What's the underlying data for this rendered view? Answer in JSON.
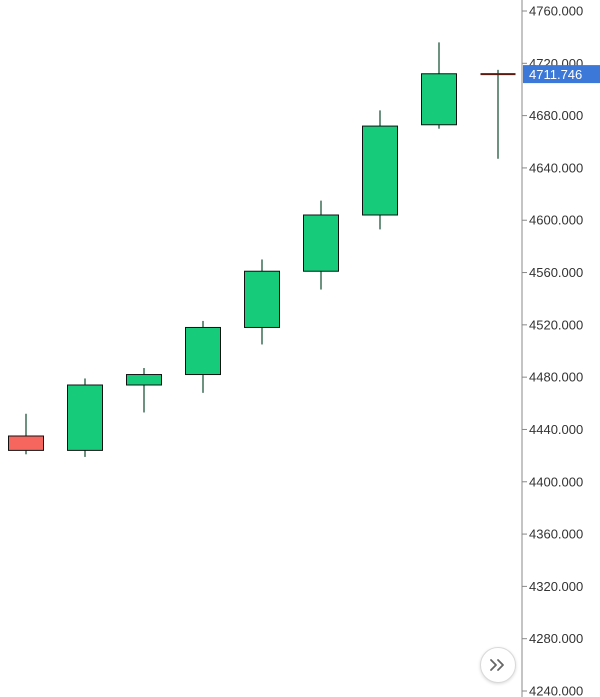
{
  "chart_data": {
    "type": "candlestick",
    "ylim": [
      4240,
      4760
    ],
    "y_ticks": [
      "4240.000",
      "4280.000",
      "4320.000",
      "4360.000",
      "4400.000",
      "4440.000",
      "4480.000",
      "4520.000",
      "4560.000",
      "4600.000",
      "4640.000",
      "4680.000",
      "4720.000",
      "4760.000"
    ],
    "last_price_label": "4711.746",
    "last_price": 4711.746,
    "candles": [
      {
        "open": 4435,
        "high": 4452,
        "low": 4421,
        "close": 4424
      },
      {
        "open": 4424,
        "high": 4479,
        "low": 4419,
        "close": 4474
      },
      {
        "open": 4474,
        "high": 4487,
        "low": 4453,
        "close": 4482
      },
      {
        "open": 4482,
        "high": 4523,
        "low": 4468,
        "close": 4518
      },
      {
        "open": 4518,
        "high": 4570,
        "low": 4505,
        "close": 4561
      },
      {
        "open": 4561,
        "high": 4615,
        "low": 4547,
        "close": 4604
      },
      {
        "open": 4604,
        "high": 4684,
        "low": 4593,
        "close": 4672
      },
      {
        "open": 4673,
        "high": 4736,
        "low": 4670,
        "close": 4712
      },
      {
        "open": 4712,
        "high": 4715,
        "low": 4647,
        "close": 4711.746
      }
    ],
    "colors": {
      "up": "#16cb7a",
      "down": "#f7665e",
      "outline": "#111111",
      "wick": "#0e4a2c",
      "axis": "#888888",
      "price_tag": "#3c78d8"
    }
  },
  "controls": {
    "scroll_icon": "double-chevron-right"
  }
}
